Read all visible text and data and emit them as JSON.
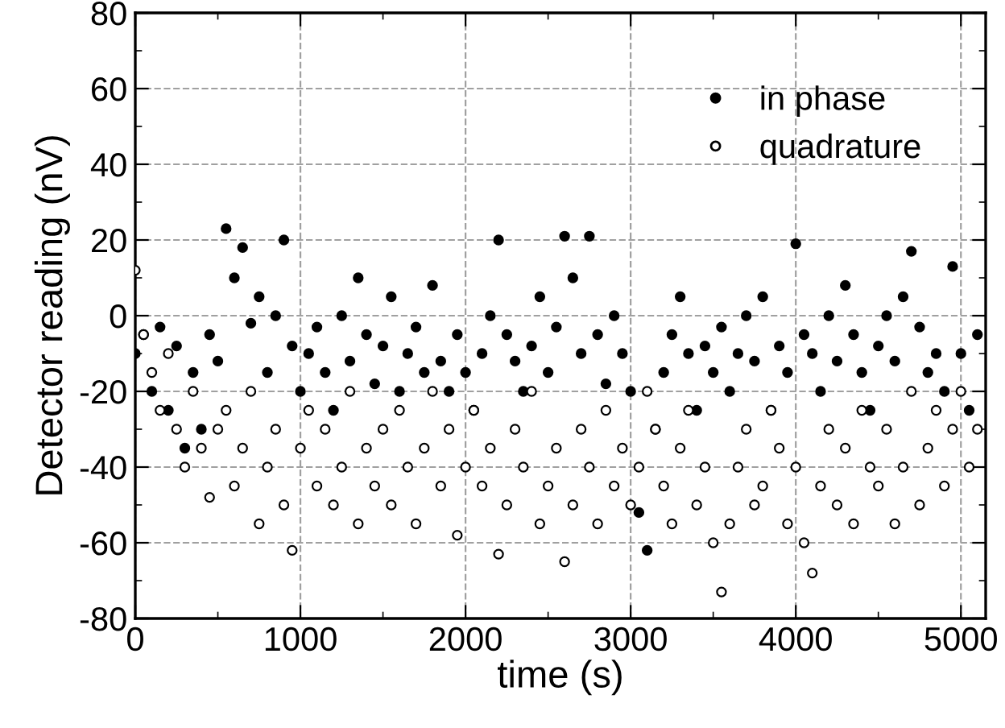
{
  "chart_data": {
    "type": "scatter",
    "xlabel": "time (s)",
    "ylabel": "Detector reading (nV)",
    "xlim": [
      0,
      5150
    ],
    "xticks": [
      0,
      1000,
      2000,
      3000,
      4000,
      5000
    ],
    "ylim": [
      -80,
      80
    ],
    "yticks": [
      -80,
      -60,
      -40,
      -20,
      0,
      20,
      40,
      60,
      80
    ],
    "grid": true,
    "legend": "top right",
    "marker": "circle",
    "x": [
      0,
      50,
      100,
      150,
      200,
      250,
      300,
      350,
      400,
      450,
      500,
      550,
      600,
      650,
      700,
      750,
      800,
      850,
      900,
      950,
      1000,
      1050,
      1100,
      1150,
      1200,
      1250,
      1300,
      1350,
      1400,
      1450,
      1500,
      1550,
      1600,
      1650,
      1700,
      1750,
      1800,
      1850,
      1900,
      1950,
      2000,
      2050,
      2100,
      2150,
      2200,
      2250,
      2300,
      2350,
      2400,
      2450,
      2500,
      2550,
      2600,
      2650,
      2700,
      2750,
      2800,
      2850,
      2900,
      2950,
      3000,
      3050,
      3100,
      3150,
      3200,
      3250,
      3300,
      3350,
      3400,
      3450,
      3500,
      3550,
      3600,
      3650,
      3700,
      3750,
      3800,
      3850,
      3900,
      3950,
      4000,
      4050,
      4100,
      4150,
      4200,
      4250,
      4300,
      4350,
      4400,
      4450,
      4500,
      4550,
      4600,
      4650,
      4700,
      4750,
      4800,
      4850,
      4900,
      4950,
      5000,
      5050,
      5100
    ],
    "series": [
      {
        "name": "in phase",
        "color": "#000000",
        "values": [
          -10,
          -5,
          -20,
          -3,
          -25,
          -8,
          -35,
          -15,
          -30,
          -5,
          -12,
          23,
          10,
          18,
          -2,
          5,
          -15,
          0,
          20,
          -8,
          -20,
          -10,
          -3,
          -15,
          -25,
          0,
          -12,
          10,
          -5,
          -18,
          -8,
          5,
          -20,
          -10,
          -3,
          -15,
          8,
          -12,
          -20,
          -5,
          -15,
          -25,
          -10,
          0,
          20,
          -5,
          -12,
          -20,
          -8,
          5,
          -15,
          -3,
          21,
          10,
          -10,
          21,
          -5,
          -18,
          0,
          -10,
          -20,
          -52,
          -62,
          -30,
          -15,
          -5,
          5,
          -10,
          -25,
          -8,
          -15,
          -3,
          -20,
          -10,
          0,
          -12,
          5,
          -25,
          -8,
          -15,
          19,
          -5,
          -10,
          -20,
          0,
          -12,
          8,
          -5,
          -15,
          -25,
          -8,
          0,
          -12,
          5,
          17,
          -3,
          -15,
          -10,
          -20,
          13,
          -10,
          -25,
          -5
        ]
      },
      {
        "name": "quadrature",
        "color": "#ffffff",
        "values": [
          12,
          -5,
          -15,
          -25,
          -10,
          -30,
          -40,
          -20,
          -35,
          -48,
          -30,
          -25,
          -45,
          -35,
          -20,
          -55,
          -40,
          -30,
          -50,
          -62,
          -35,
          -25,
          -45,
          -30,
          -50,
          -40,
          -20,
          -55,
          -35,
          -45,
          -30,
          -50,
          -25,
          -40,
          -55,
          -35,
          -20,
          -45,
          -30,
          -58,
          -40,
          -25,
          -45,
          -35,
          -63,
          -50,
          -30,
          -40,
          -20,
          -55,
          -45,
          -35,
          -65,
          -50,
          -30,
          -40,
          -55,
          -25,
          -45,
          -35,
          -50,
          -40,
          -20,
          -30,
          -45,
          -55,
          -35,
          -25,
          -50,
          -40,
          -60,
          -73,
          -55,
          -40,
          -30,
          -50,
          -45,
          -25,
          -35,
          -55,
          -40,
          -60,
          -68,
          -45,
          -30,
          -50,
          -35,
          -55,
          -25,
          -40,
          -45,
          -30,
          -55,
          -40,
          -20,
          -50,
          -35,
          -25,
          -45,
          -30,
          -20,
          -40,
          -30
        ]
      }
    ]
  }
}
